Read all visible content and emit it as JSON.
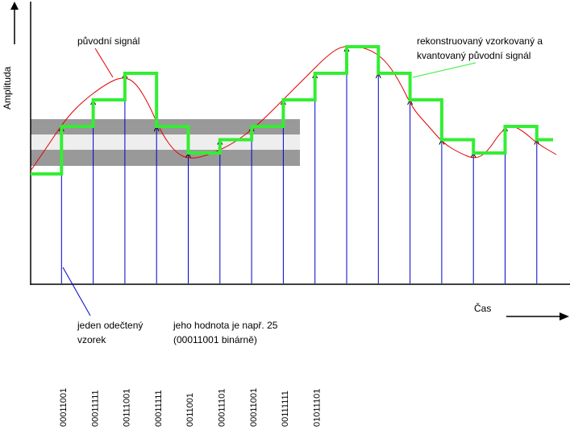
{
  "labels": {
    "y_axis": "Amplituda",
    "x_axis": "Čas",
    "original_signal": "původní signál",
    "reconstructed_line1": "rekonstruovaný vzorkovaný a",
    "reconstructed_line2": "kvantovaný původní signál",
    "sample_line1": "jeden odečtený",
    "sample_line2": "vzorek",
    "value_line1": "jeho hodnota je např. 25",
    "value_line2": "(00011001 binárně)"
  },
  "sample_codes": [
    "00011001",
    "00011111",
    "00111001",
    "00011111",
    "0011001",
    "00011101",
    "00011001",
    "00111111",
    "01011101"
  ],
  "colors": {
    "signal": "#e00000",
    "reconstructed": "#33ee33",
    "samples": "#0000cc",
    "band_dark": "#999999",
    "band_light": "#eeeeee"
  },
  "chart_data": {
    "type": "line",
    "x": [
      1,
      2,
      3,
      4,
      5,
      6,
      7,
      8,
      9,
      10,
      11,
      12,
      13,
      14,
      15,
      16
    ],
    "series": [
      {
        "name": "samples",
        "values": [
          5,
          6,
          7,
          5,
          4,
          4.5,
          5,
          6,
          7,
          8,
          7,
          6,
          4.5,
          4,
          5,
          4.5
        ]
      }
    ],
    "y_levels_note": "",
    "ylim": [
      0,
      9
    ],
    "xlim": [
      0,
      17
    ]
  }
}
